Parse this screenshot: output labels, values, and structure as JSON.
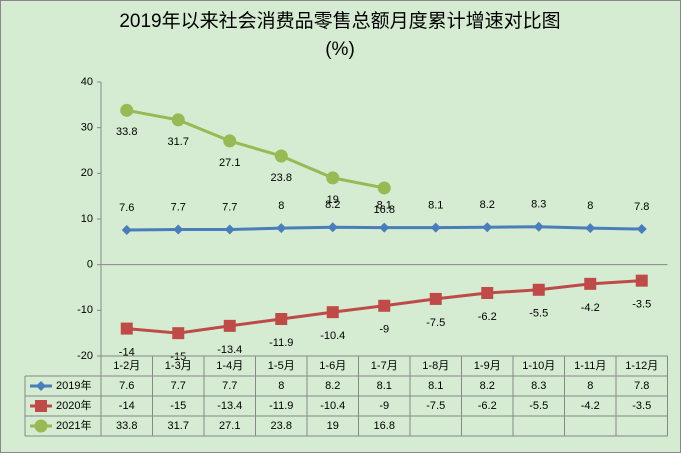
{
  "chart_data": {
    "type": "line",
    "title": "2019年以来社会消费品零售总额月度累计增速对比图",
    "unit": "(%)",
    "categories": [
      "1-2月",
      "1-3月",
      "1-4月",
      "1-5月",
      "1-6月",
      "1-7月",
      "1-8月",
      "1-9月",
      "1-10月",
      "1-11月",
      "1-12月"
    ],
    "series": [
      {
        "name": "2019年",
        "color": "#4a7ebb",
        "marker": "diamond",
        "values": [
          7.6,
          7.7,
          7.7,
          8,
          8.2,
          8.1,
          8.1,
          8.2,
          8.3,
          8,
          7.8
        ]
      },
      {
        "name": "2020年",
        "color": "#be4b48",
        "marker": "square",
        "values": [
          -14,
          -15,
          -13.4,
          -11.9,
          -10.4,
          -9,
          -7.5,
          -6.2,
          -5.5,
          -4.2,
          -3.5
        ]
      },
      {
        "name": "2021年",
        "color": "#98b954",
        "marker": "circle",
        "values": [
          33.8,
          31.7,
          27.1,
          23.8,
          19,
          16.8,
          null,
          null,
          null,
          null,
          null
        ]
      }
    ],
    "ylim": [
      -20,
      40
    ],
    "yticks": [
      -20,
      -10,
      0,
      10,
      20,
      30,
      40
    ],
    "grid": false,
    "data_table": true
  }
}
